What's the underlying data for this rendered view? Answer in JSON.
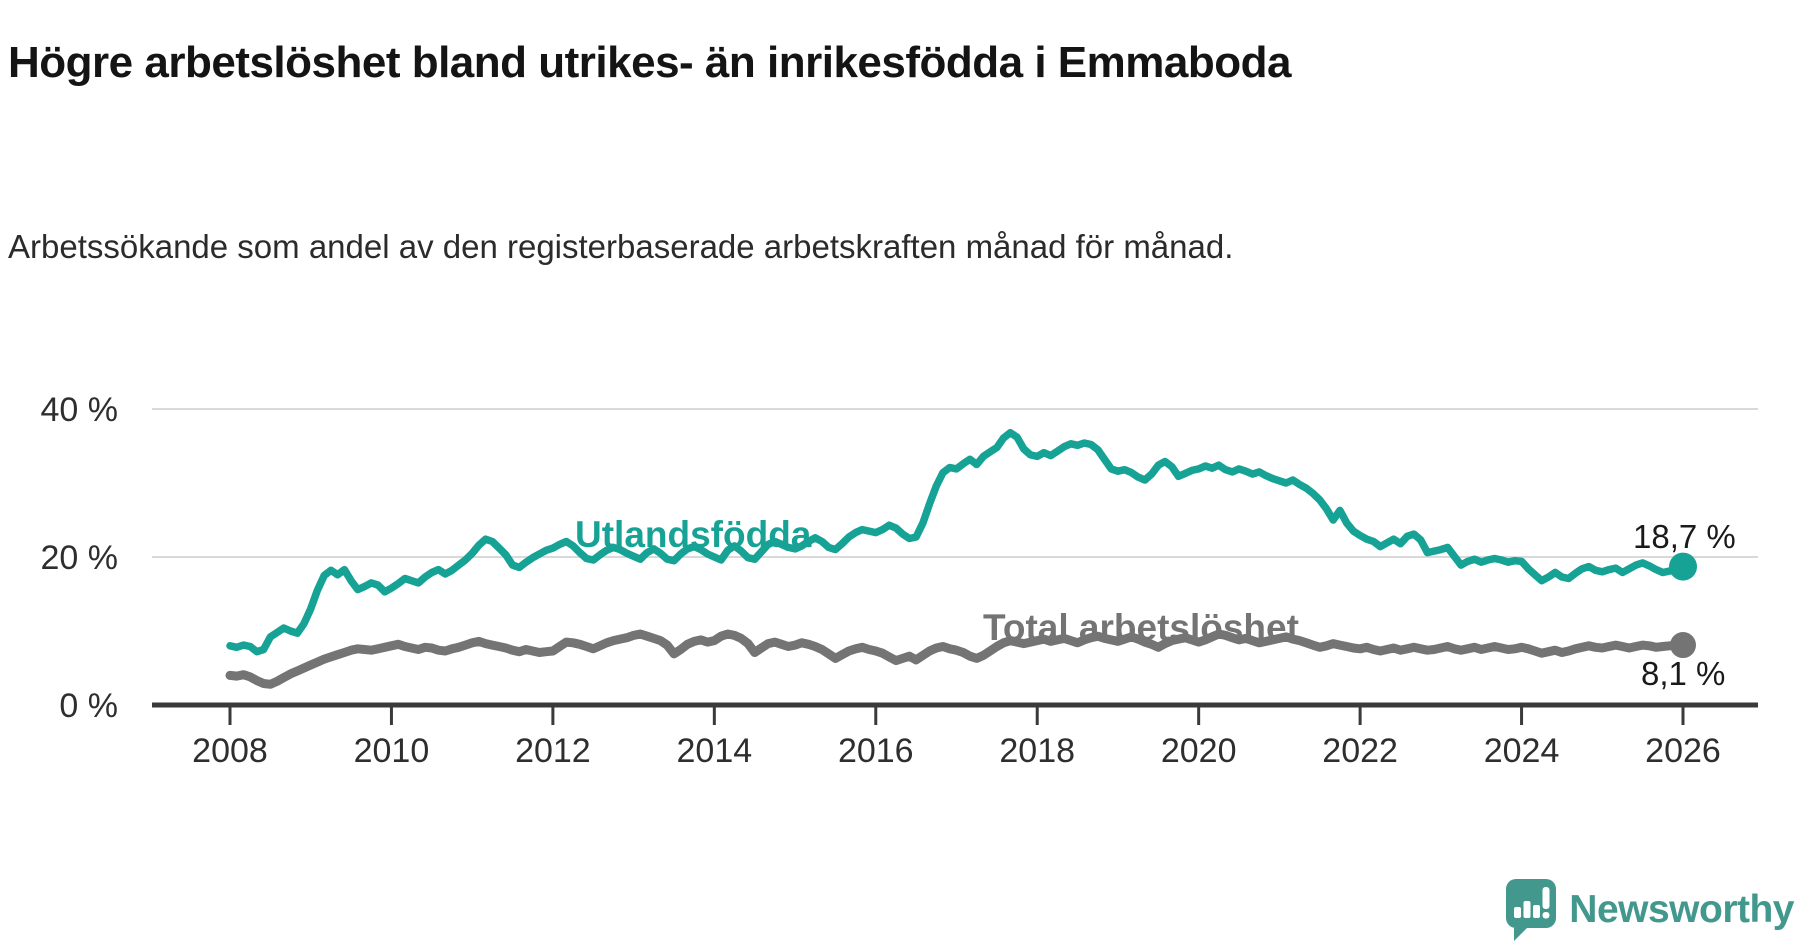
{
  "header": {
    "title": "Högre arbetslöshet bland utrikes- än inrikesfödda i Emmaboda",
    "subtitle": "Arbetssökande som andel av den registerbaserade arbetskraften månad för månad."
  },
  "branding": {
    "logo_text": "Newsworthy",
    "logo_color": "#43988e"
  },
  "chart_data": {
    "type": "line",
    "frequency": "monthly",
    "x_range": [
      2008,
      2026
    ],
    "x_tick_labels": [
      "2008",
      "2010",
      "2012",
      "2014",
      "2016",
      "2018",
      "2020",
      "2022",
      "2024",
      "2026"
    ],
    "y_tick_values": [
      0,
      20,
      40
    ],
    "y_tick_labels": [
      "0 %",
      "20 %",
      "40 %"
    ],
    "ylim": [
      0,
      43
    ],
    "grid": "horizontal",
    "colors": {
      "axis": "#3a3a3a",
      "grid": "#d9d9d9",
      "tick_text": "#2e2e2e",
      "end_label_text": "#1a1a1a"
    },
    "series": [
      {
        "name": "Utlandsfödda",
        "color": "#16a295",
        "end_label": "18,7 %",
        "end_value": 18.7,
        "values": [
          8.0,
          7.8,
          8.1,
          7.9,
          7.2,
          7.5,
          9.2,
          9.8,
          10.4,
          10.0,
          9.7,
          11.0,
          13.0,
          15.5,
          17.5,
          18.2,
          17.6,
          18.3,
          16.8,
          15.6,
          16.0,
          16.5,
          16.2,
          15.3,
          15.8,
          16.4,
          17.1,
          16.8,
          16.5,
          17.3,
          17.9,
          18.3,
          17.7,
          18.2,
          18.9,
          19.6,
          20.5,
          21.6,
          22.4,
          22.1,
          21.2,
          20.3,
          18.9,
          18.6,
          19.3,
          19.9,
          20.4,
          20.9,
          21.2,
          21.7,
          22.1,
          21.5,
          20.6,
          19.8,
          19.6,
          20.3,
          20.9,
          21.3,
          21.0,
          20.5,
          20.1,
          19.7,
          20.6,
          21.1,
          20.5,
          19.7,
          19.5,
          20.4,
          21.1,
          21.4,
          21.0,
          20.4,
          20.0,
          19.6,
          20.9,
          21.5,
          20.8,
          19.9,
          19.7,
          20.7,
          21.7,
          22.1,
          21.7,
          21.3,
          21.1,
          21.5,
          22.1,
          22.6,
          22.1,
          21.3,
          21.0,
          21.8,
          22.7,
          23.3,
          23.7,
          23.5,
          23.3,
          23.7,
          24.3,
          23.9,
          23.1,
          22.5,
          22.7,
          24.6,
          27.2,
          29.6,
          31.4,
          32.1,
          31.9,
          32.6,
          33.2,
          32.5,
          33.6,
          34.2,
          34.8,
          36.1,
          36.8,
          36.2,
          34.6,
          33.8,
          33.6,
          34.1,
          33.7,
          34.3,
          34.9,
          35.3,
          35.1,
          35.4,
          35.2,
          34.5,
          33.2,
          31.9,
          31.6,
          31.8,
          31.4,
          30.8,
          30.4,
          31.2,
          32.4,
          32.9,
          32.2,
          30.9,
          31.3,
          31.7,
          31.9,
          32.3,
          32.0,
          32.4,
          31.8,
          31.5,
          31.9,
          31.6,
          31.2,
          31.5,
          31.0,
          30.6,
          30.3,
          30.0,
          30.4,
          29.8,
          29.3,
          28.6,
          27.7,
          26.5,
          25.0,
          26.3,
          24.6,
          23.5,
          22.9,
          22.4,
          22.1,
          21.4,
          21.9,
          22.4,
          21.8,
          22.8,
          23.1,
          22.3,
          20.6,
          20.8,
          21.0,
          21.3,
          20.1,
          18.9,
          19.4,
          19.7,
          19.3,
          19.6,
          19.8,
          19.6,
          19.3,
          19.5,
          19.4,
          18.4,
          17.6,
          16.8,
          17.3,
          17.9,
          17.3,
          17.1,
          17.8,
          18.4,
          18.7,
          18.2,
          18.0,
          18.3,
          18.5,
          17.9,
          18.4,
          18.9,
          19.2,
          18.8,
          18.3,
          17.9,
          18.1,
          18.4,
          18.7
        ]
      },
      {
        "name": "Total arbetslöshet",
        "color": "#747474",
        "end_label": "8,1 %",
        "end_value": 8.1,
        "values": [
          4.0,
          3.9,
          4.1,
          3.8,
          3.3,
          2.9,
          2.8,
          3.2,
          3.7,
          4.2,
          4.6,
          5.0,
          5.4,
          5.8,
          6.2,
          6.5,
          6.8,
          7.1,
          7.4,
          7.6,
          7.5,
          7.4,
          7.6,
          7.8,
          8.0,
          8.2,
          7.9,
          7.7,
          7.5,
          7.8,
          7.7,
          7.4,
          7.3,
          7.6,
          7.8,
          8.1,
          8.4,
          8.6,
          8.3,
          8.1,
          7.9,
          7.7,
          7.4,
          7.2,
          7.5,
          7.3,
          7.1,
          7.2,
          7.3,
          7.9,
          8.5,
          8.4,
          8.2,
          7.9,
          7.6,
          8.0,
          8.4,
          8.7,
          8.9,
          9.1,
          9.4,
          9.6,
          9.3,
          9.0,
          8.7,
          8.1,
          6.9,
          7.5,
          8.2,
          8.6,
          8.8,
          8.5,
          8.7,
          9.3,
          9.6,
          9.4,
          9.0,
          8.3,
          7.1,
          7.7,
          8.3,
          8.5,
          8.2,
          7.9,
          8.1,
          8.4,
          8.2,
          7.9,
          7.5,
          6.9,
          6.3,
          6.8,
          7.3,
          7.6,
          7.8,
          7.5,
          7.3,
          7.0,
          6.5,
          6.0,
          6.3,
          6.6,
          6.1,
          6.7,
          7.3,
          7.7,
          7.9,
          7.6,
          7.4,
          7.1,
          6.6,
          6.3,
          6.7,
          7.3,
          7.9,
          8.4,
          8.7,
          8.5,
          8.3,
          8.5,
          8.7,
          8.9,
          8.6,
          8.8,
          9.0,
          8.7,
          8.4,
          8.8,
          9.1,
          9.3,
          9.0,
          8.8,
          8.6,
          8.9,
          9.2,
          8.9,
          8.5,
          8.2,
          7.8,
          8.3,
          8.7,
          8.9,
          9.1,
          8.8,
          8.5,
          8.8,
          9.2,
          9.6,
          9.4,
          9.1,
          8.8,
          9.0,
          8.7,
          8.4,
          8.6,
          8.8,
          9.0,
          9.2,
          8.9,
          8.7,
          8.4,
          8.1,
          7.8,
          8.0,
          8.3,
          8.1,
          7.9,
          7.7,
          7.6,
          7.8,
          7.5,
          7.3,
          7.5,
          7.7,
          7.4,
          7.6,
          7.8,
          7.6,
          7.4,
          7.5,
          7.7,
          7.9,
          7.6,
          7.4,
          7.6,
          7.8,
          7.5,
          7.7,
          7.9,
          7.7,
          7.5,
          7.6,
          7.8,
          7.6,
          7.3,
          7.0,
          7.2,
          7.4,
          7.1,
          7.3,
          7.6,
          7.8,
          8.0,
          7.8,
          7.7,
          7.9,
          8.1,
          7.9,
          7.7,
          7.9,
          8.1,
          8.0,
          7.8,
          7.9,
          8.0,
          8.0,
          8.1
        ]
      }
    ]
  }
}
